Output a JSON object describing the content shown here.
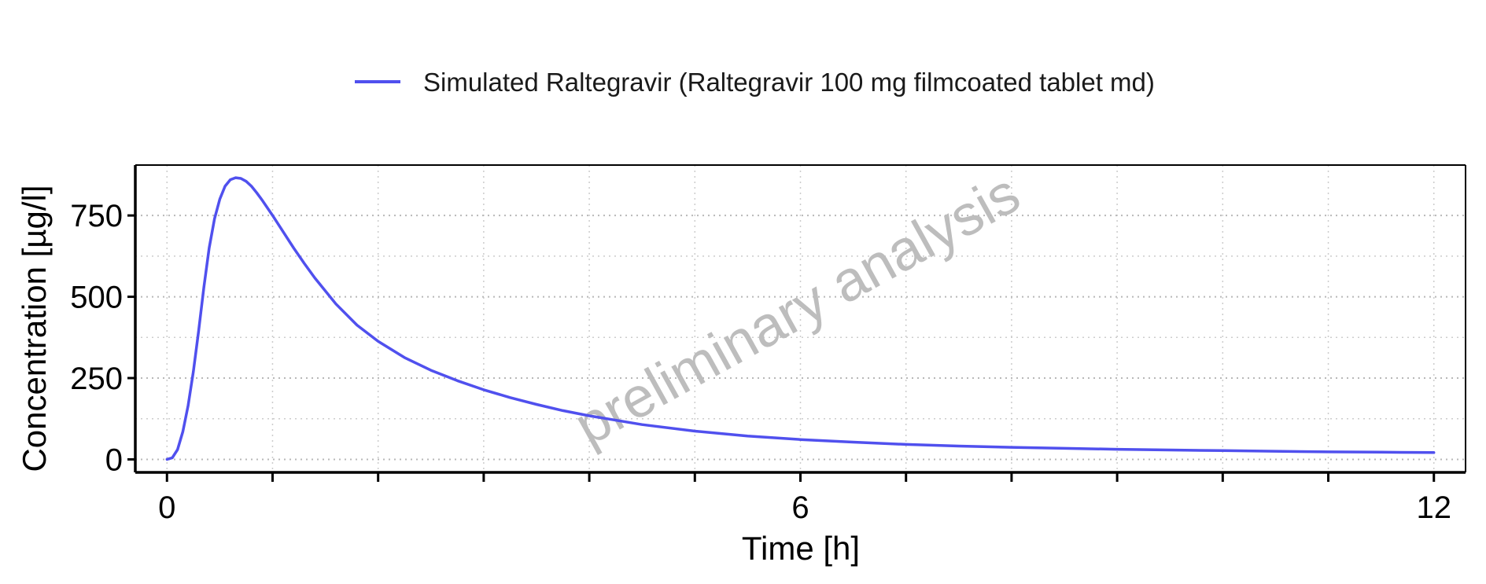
{
  "chart_data": {
    "type": "line",
    "title": "",
    "xlabel": "Time [h]",
    "ylabel": "Concentration [µg/l]",
    "xlim": [
      -0.3,
      12.3
    ],
    "ylim": [
      -40,
      905
    ],
    "x_ticks": [
      0,
      6,
      12
    ],
    "x_tick_labels": [
      "0",
      "6",
      "12"
    ],
    "x_minor_ticks": [
      0,
      1,
      2,
      3,
      4,
      5,
      6,
      7,
      8,
      9,
      10,
      11,
      12
    ],
    "y_ticks": [
      0,
      250,
      500,
      750
    ],
    "y_tick_labels": [
      "0",
      "250",
      "500",
      "750"
    ],
    "grid": true,
    "grid_style": "dotted",
    "legend_position": "top",
    "watermark": "preliminary analysis",
    "colors": {
      "series": "#5050ee",
      "grid": "#cccccc",
      "axis": "#000000",
      "watermark": "#bdbdbd"
    },
    "series": [
      {
        "name": "Simulated Raltegravir (Raltegravir 100 mg filmcoated tablet md)",
        "x": [
          0,
          0.05,
          0.1,
          0.15,
          0.2,
          0.25,
          0.3,
          0.35,
          0.4,
          0.45,
          0.5,
          0.55,
          0.6,
          0.65,
          0.7,
          0.75,
          0.8,
          0.85,
          0.9,
          1.0,
          1.1,
          1.2,
          1.3,
          1.4,
          1.6,
          1.8,
          2.0,
          2.25,
          2.5,
          2.75,
          3.0,
          3.25,
          3.5,
          3.75,
          4.0,
          4.5,
          5.0,
          5.5,
          6.0,
          6.5,
          7.0,
          7.5,
          8.0,
          8.5,
          9.0,
          9.5,
          10.0,
          10.5,
          11.0,
          11.5,
          12.0
        ],
        "y": [
          0,
          5,
          30,
          85,
          165,
          270,
          395,
          530,
          650,
          740,
          800,
          840,
          860,
          866,
          864,
          855,
          840,
          820,
          798,
          750,
          700,
          650,
          603,
          558,
          478,
          413,
          363,
          313,
          274,
          242,
          214,
          190,
          169,
          150,
          134,
          107,
          87,
          72,
          61,
          53,
          46,
          41,
          37,
          34,
          31,
          29,
          27,
          25,
          23,
          22,
          21
        ]
      }
    ]
  }
}
